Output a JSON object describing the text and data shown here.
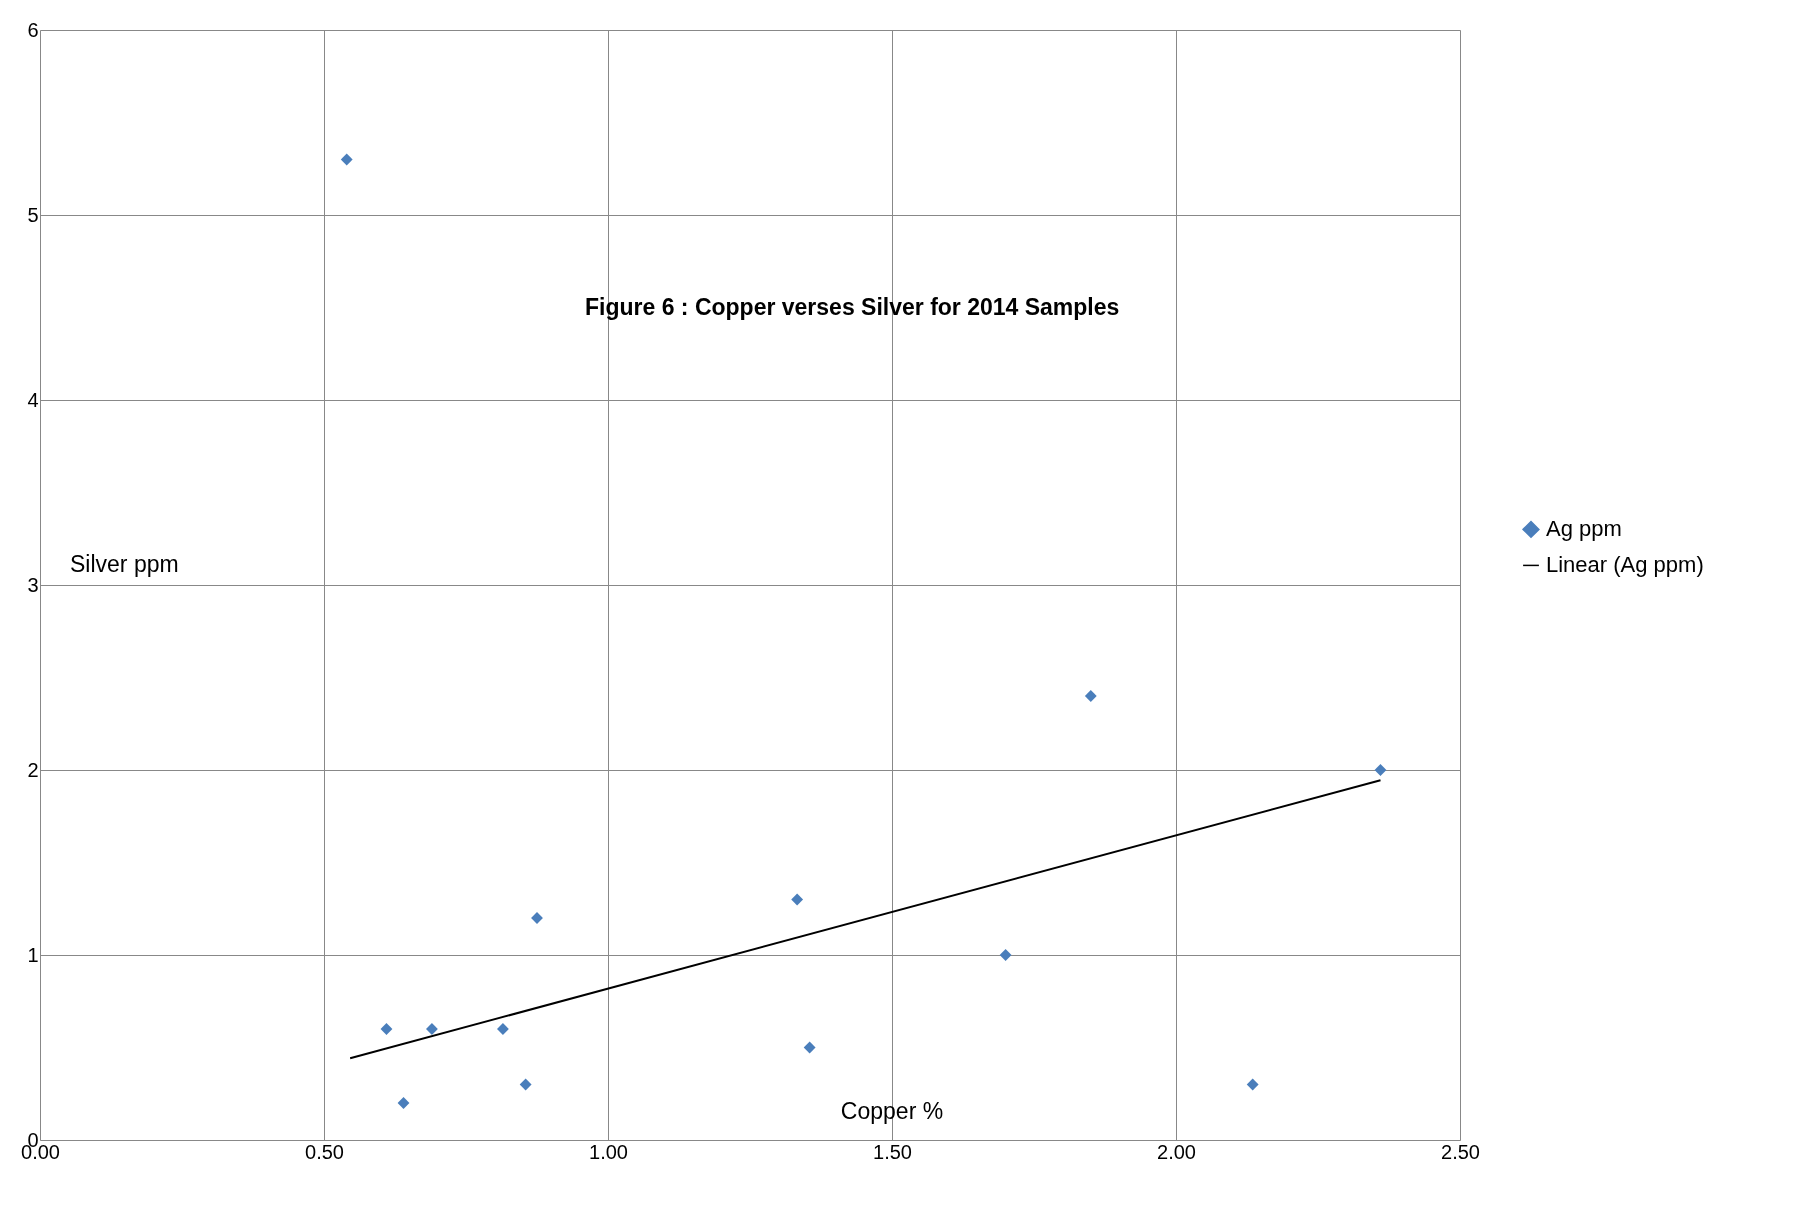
{
  "chart_data": {
    "type": "scatter",
    "title": "Figure 6 : Copper verses Silver for 2014 Samples",
    "xlabel": "Copper %",
    "ylabel": "Silver ppm",
    "series": [
      {
        "name": "Ag ppm",
        "color": "#4a7ebb",
        "marker": "diamond",
        "x": [
          0.54,
          0.61,
          0.64,
          0.69,
          0.815,
          0.855,
          0.875,
          1.333,
          1.355,
          1.7,
          1.85,
          2.135,
          2.36
        ],
        "values": [
          5.3,
          0.6,
          0.2,
          0.6,
          0.6,
          0.3,
          1.2,
          1.3,
          0.5,
          1.0,
          2.4,
          0.3,
          2.0
        ]
      },
      {
        "name": "Linear (Ag ppm)",
        "type": "line",
        "color": "#000000",
        "x": [
          0.546,
          2.36
        ],
        "values": [
          0.442,
          1.945
        ]
      }
    ],
    "xlim": [
      0,
      2.5
    ],
    "ylim": [
      0,
      6
    ],
    "xticks": [
      {
        "value": 0,
        "label": "0.00"
      },
      {
        "value": 0.5,
        "label": "0.50"
      },
      {
        "value": 1,
        "label": "1.00"
      },
      {
        "value": 1.5,
        "label": "1.50"
      },
      {
        "value": 2,
        "label": "2.00"
      },
      {
        "value": 2.5,
        "label": "2.50"
      }
    ],
    "yticks": [
      0,
      1,
      2,
      3,
      4,
      5,
      6
    ],
    "grid": true,
    "legend": "right"
  }
}
